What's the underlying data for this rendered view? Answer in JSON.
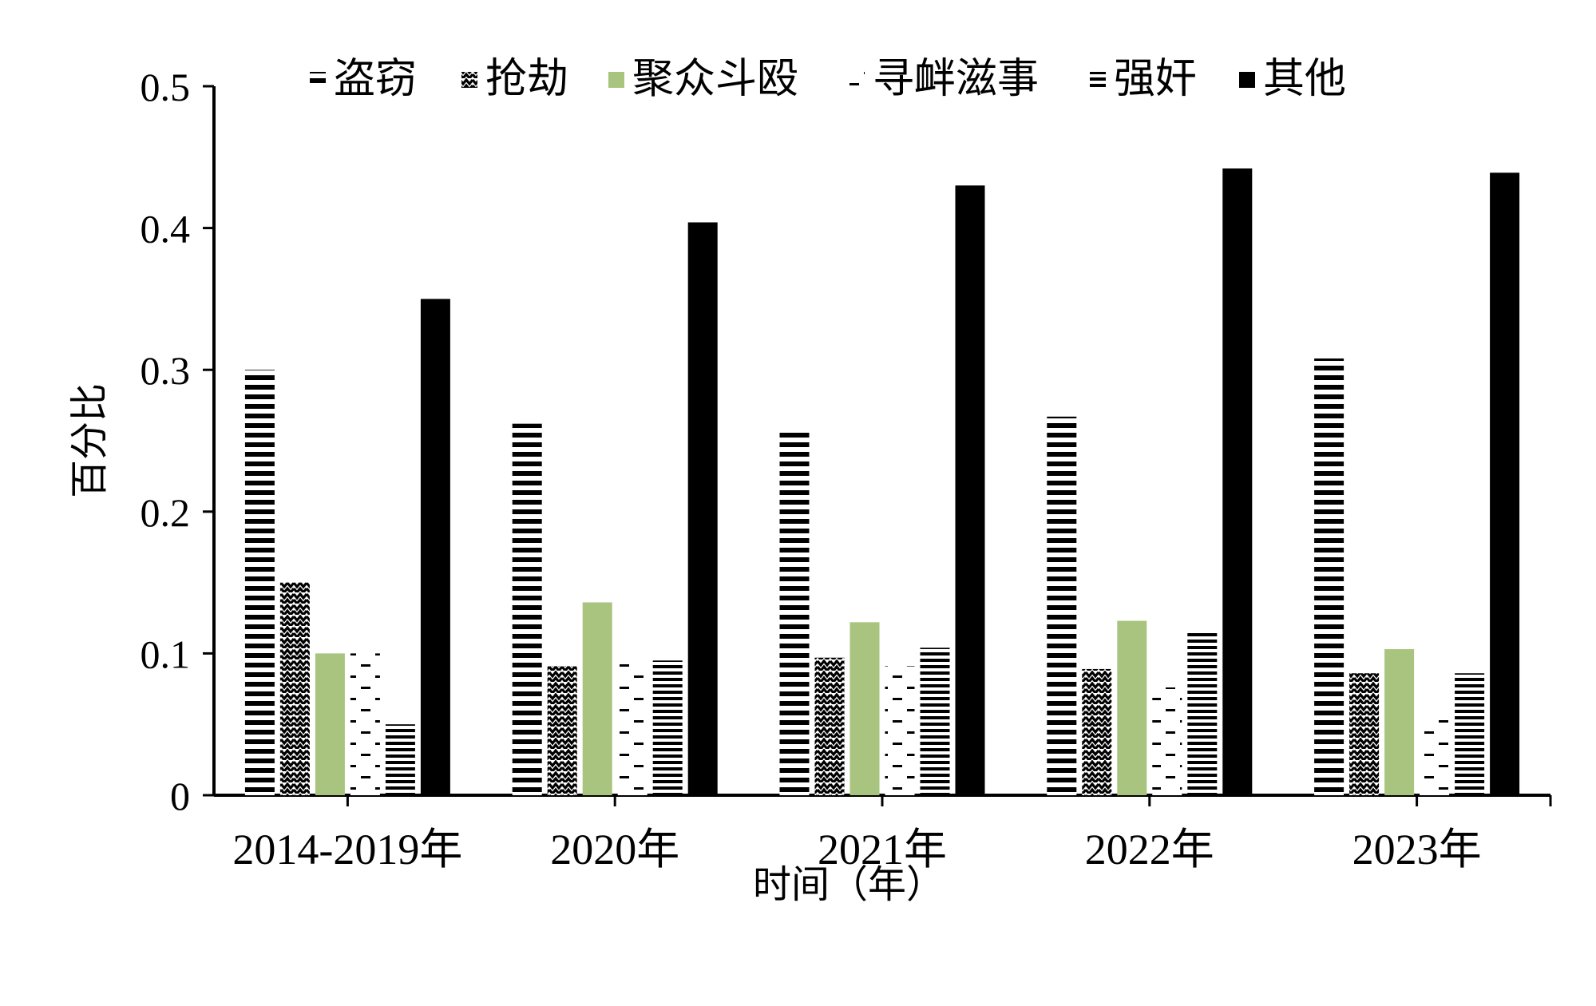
{
  "chart_data": {
    "type": "bar",
    "title": "",
    "xlabel": "时间（年）",
    "ylabel": "百分比",
    "ylim": [
      0,
      0.5
    ],
    "yticks": [
      "0",
      "0.1",
      "0.2",
      "0.3",
      "0.4",
      "0.5"
    ],
    "grid": false,
    "legend_position": "top",
    "categories": [
      "2014-2019年",
      "2020年",
      "2021年",
      "2022年",
      "2023年"
    ],
    "series": [
      {
        "name": "盗窃",
        "pattern": "horizontal-thick",
        "color": "#000000",
        "values": [
          0.3,
          0.262,
          0.258,
          0.267,
          0.308
        ]
      },
      {
        "name": "抢劫",
        "pattern": "zigzag",
        "color": "#000000",
        "values": [
          0.15,
          0.091,
          0.097,
          0.089,
          0.086
        ]
      },
      {
        "name": "聚众斗殴",
        "pattern": "solid",
        "color": "#a9c47f",
        "values": [
          0.1,
          0.136,
          0.122,
          0.123,
          0.103
        ]
      },
      {
        "name": "寻衅滋事",
        "pattern": "dashes",
        "color": "#000000",
        "values": [
          0.1,
          0.098,
          0.091,
          0.076,
          0.059
        ]
      },
      {
        "name": "强奸",
        "pattern": "horizontal-fine",
        "color": "#000000",
        "values": [
          0.05,
          0.095,
          0.104,
          0.115,
          0.086
        ]
      },
      {
        "name": "其他",
        "pattern": "solid",
        "color": "#000000",
        "values": [
          0.35,
          0.404,
          0.43,
          0.442,
          0.439
        ]
      }
    ]
  }
}
